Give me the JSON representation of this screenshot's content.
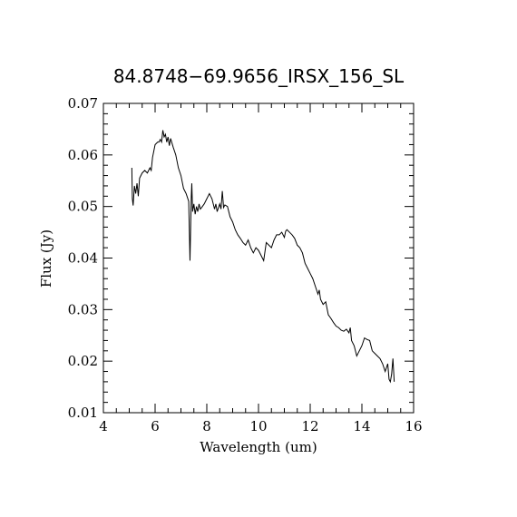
{
  "chart_data": {
    "type": "line",
    "title": "84.8748−69.9656_IRSX_156_SL",
    "xlabel": "Wavelength (um)",
    "ylabel": "Flux (Jy)",
    "xlim": [
      4,
      16
    ],
    "ylim": [
      0.01,
      0.07
    ],
    "xticks": [
      4,
      6,
      8,
      10,
      12,
      14,
      16
    ],
    "xtick_labels": [
      "4",
      "6",
      "8",
      "10",
      "12",
      "14",
      "16"
    ],
    "yticks": [
      0.01,
      0.02,
      0.03,
      0.04,
      0.05,
      0.06,
      0.07
    ],
    "ytick_labels": [
      "0.01",
      "0.02",
      "0.03",
      "0.04",
      "0.05",
      "0.06",
      "0.07"
    ],
    "grid": false,
    "legend": "none",
    "colors": {
      "line": "#000000",
      "axes": "#000000",
      "background": "#ffffff"
    },
    "series": [
      {
        "x": [
          5.1,
          5.12,
          5.15,
          5.2,
          5.25,
          5.3,
          5.35,
          5.4,
          5.5,
          5.6,
          5.7,
          5.8,
          5.85,
          5.9,
          6.0,
          6.1,
          6.15,
          6.2,
          6.25,
          6.3,
          6.35,
          6.4,
          6.45,
          6.5,
          6.55,
          6.6,
          6.7,
          6.8,
          6.9,
          7.0,
          7.1,
          7.2,
          7.3,
          7.35,
          7.4,
          7.42,
          7.45,
          7.5,
          7.55,
          7.6,
          7.65,
          7.7,
          7.75,
          7.8,
          7.9,
          8.0,
          8.1,
          8.2,
          8.3,
          8.35,
          8.4,
          8.5,
          8.55,
          8.6,
          8.65,
          8.7,
          8.8,
          8.9,
          9.0,
          9.1,
          9.2,
          9.3,
          9.4,
          9.5,
          9.6,
          9.7,
          9.8,
          9.9,
          10.0,
          10.1,
          10.2,
          10.3,
          10.4,
          10.5,
          10.6,
          10.7,
          10.8,
          10.9,
          11.0,
          11.05,
          11.1,
          11.2,
          11.3,
          11.4,
          11.5,
          11.6,
          11.7,
          11.8,
          11.9,
          12.0,
          12.1,
          12.2,
          12.3,
          12.35,
          12.4,
          12.5,
          12.6,
          12.7,
          12.8,
          12.9,
          13.0,
          13.1,
          13.2,
          13.3,
          13.4,
          13.5,
          13.55,
          13.6,
          13.7,
          13.8,
          13.9,
          14.0,
          14.1,
          14.2,
          14.3,
          14.4,
          14.5,
          14.6,
          14.7,
          14.8,
          14.9,
          15.0,
          15.05,
          15.1,
          15.15,
          15.2,
          15.25
        ],
        "y": [
          0.0575,
          0.0515,
          0.0502,
          0.054,
          0.0525,
          0.0545,
          0.052,
          0.0555,
          0.0565,
          0.057,
          0.0565,
          0.0575,
          0.057,
          0.0595,
          0.062,
          0.0625,
          0.0625,
          0.063,
          0.0625,
          0.0648,
          0.0635,
          0.064,
          0.0625,
          0.0635,
          0.0618,
          0.0632,
          0.0615,
          0.06,
          0.0575,
          0.056,
          0.0535,
          0.0525,
          0.051,
          0.0395,
          0.052,
          0.0545,
          0.049,
          0.0505,
          0.0485,
          0.05,
          0.049,
          0.0505,
          0.0495,
          0.0498,
          0.0505,
          0.0515,
          0.0525,
          0.0515,
          0.0495,
          0.0505,
          0.049,
          0.0505,
          0.0495,
          0.053,
          0.0498,
          0.0503,
          0.05,
          0.048,
          0.047,
          0.0455,
          0.0445,
          0.0438,
          0.043,
          0.0425,
          0.0435,
          0.042,
          0.041,
          0.042,
          0.0415,
          0.0405,
          0.0395,
          0.043,
          0.0425,
          0.042,
          0.0435,
          0.0445,
          0.0445,
          0.045,
          0.044,
          0.0452,
          0.0455,
          0.045,
          0.0445,
          0.0438,
          0.0425,
          0.042,
          0.041,
          0.039,
          0.038,
          0.037,
          0.036,
          0.0345,
          0.033,
          0.0338,
          0.032,
          0.031,
          0.0315,
          0.029,
          0.0283,
          0.0275,
          0.0268,
          0.0265,
          0.026,
          0.0258,
          0.0262,
          0.0255,
          0.0265,
          0.024,
          0.023,
          0.021,
          0.022,
          0.023,
          0.0245,
          0.0242,
          0.024,
          0.022,
          0.0215,
          0.021,
          0.0205,
          0.0195,
          0.018,
          0.0195,
          0.0165,
          0.016,
          0.0175,
          0.0205,
          0.016
        ]
      }
    ]
  }
}
